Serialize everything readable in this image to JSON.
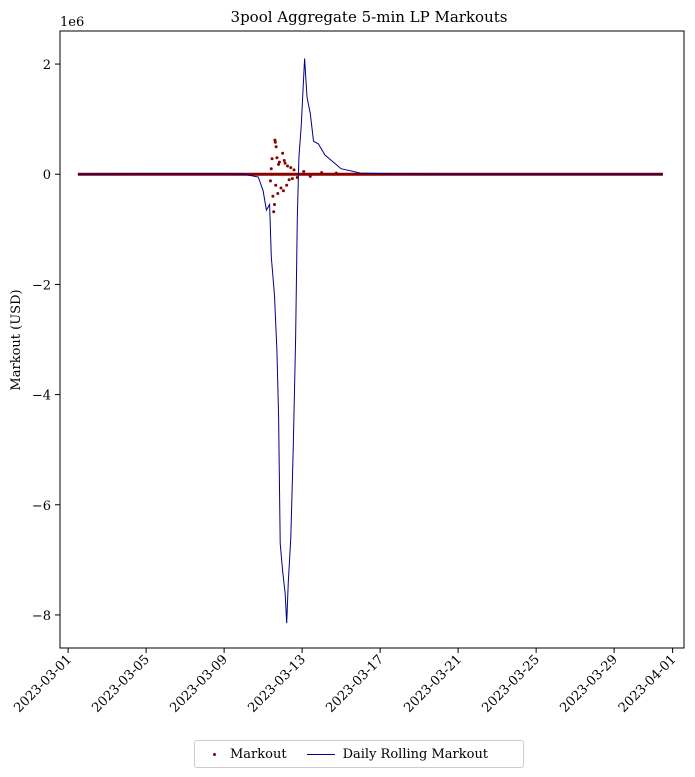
{
  "chart_data": {
    "type": "scatter+line",
    "title": "3pool Aggregate 5-min LP Markouts",
    "ylabel": "Markout (USD)",
    "xlabel": "",
    "y_multiplier_label": "1e6",
    "ylim": [
      -8.6,
      2.6
    ],
    "xlim": [
      "2023-02-28T14:00",
      "2023-04-01T14:00"
    ],
    "y_ticks": [
      2,
      0,
      -2,
      -4,
      -6,
      -8
    ],
    "y_tick_labels": [
      "2",
      "0",
      "−2",
      "−4",
      "−6",
      "−8"
    ],
    "x_ticks": [
      "2023-03-01",
      "2023-03-05",
      "2023-03-09",
      "2023-03-13",
      "2023-03-17",
      "2023-03-21",
      "2023-03-25",
      "2023-03-29",
      "2023-04-01"
    ],
    "grid": false,
    "legend_placement": "bottom-center",
    "colors": {
      "markout": "#8b0000",
      "rolling": "#00008b"
    },
    "series": [
      {
        "name": "Markout",
        "kind": "scatter",
        "points": [
          [
            "2023-03-11T14:30",
            0.62
          ],
          [
            "2023-03-11T15:00",
            0.58
          ],
          [
            "2023-03-11T12:00",
            -0.4
          ],
          [
            "2023-03-11T13:00",
            -0.68
          ],
          [
            "2023-03-11T14:00",
            -0.55
          ],
          [
            "2023-03-11T16:00",
            0.5
          ],
          [
            "2023-03-11T17:00",
            0.3
          ],
          [
            "2023-03-11T18:00",
            -0.35
          ],
          [
            "2023-03-11T20:00",
            0.22
          ],
          [
            "2023-03-11T22:00",
            -0.25
          ],
          [
            "2023-03-12T00:00",
            0.38
          ],
          [
            "2023-03-12T01:00",
            -0.3
          ],
          [
            "2023-03-12T03:00",
            0.2
          ],
          [
            "2023-03-12T05:00",
            -0.2
          ],
          [
            "2023-03-12T06:00",
            0.15
          ],
          [
            "2023-03-12T08:00",
            -0.1
          ],
          [
            "2023-03-12T10:00",
            0.12
          ],
          [
            "2023-03-12T12:00",
            -0.08
          ],
          [
            "2023-03-11T10:00",
            0.1
          ],
          [
            "2023-03-11T09:00",
            -0.12
          ],
          [
            "2023-03-11T11:00",
            0.28
          ],
          [
            "2023-03-11T15:30",
            -0.2
          ],
          [
            "2023-03-11T19:00",
            0.18
          ],
          [
            "2023-03-12T02:00",
            0.25
          ],
          [
            "2023-03-12T14:00",
            0.08
          ],
          [
            "2023-03-12T18:00",
            -0.06
          ],
          [
            "2023-03-13T02:00",
            0.05
          ],
          [
            "2023-03-13T10:00",
            -0.04
          ],
          [
            "2023-03-14T00:00",
            0.03
          ],
          [
            "2023-03-14T18:00",
            0.02
          ]
        ]
      },
      {
        "name": "Daily Rolling Markout",
        "kind": "line",
        "points": [
          [
            "2023-03-01T12:00",
            0.0
          ],
          [
            "2023-03-05T00:00",
            0.01
          ],
          [
            "2023-03-09T00:00",
            0.01
          ],
          [
            "2023-03-10T00:00",
            0.0
          ],
          [
            "2023-03-10T18:00",
            -0.05
          ],
          [
            "2023-03-11T00:00",
            -0.3
          ],
          [
            "2023-03-11T04:00",
            -0.65
          ],
          [
            "2023-03-11T08:00",
            -0.55
          ],
          [
            "2023-03-11T10:00",
            -1.5
          ],
          [
            "2023-03-11T14:00",
            -2.2
          ],
          [
            "2023-03-11T17:00",
            -3.2
          ],
          [
            "2023-03-11T19:00",
            -4.4
          ],
          [
            "2023-03-11T21:00",
            -6.7
          ],
          [
            "2023-03-12T00:00",
            -7.2
          ],
          [
            "2023-03-12T03:00",
            -7.6
          ],
          [
            "2023-03-12T05:00",
            -8.15
          ],
          [
            "2023-03-12T07:00",
            -7.4
          ],
          [
            "2023-03-12T10:00",
            -6.6
          ],
          [
            "2023-03-12T13:00",
            -5.0
          ],
          [
            "2023-03-12T16:00",
            -3.0
          ],
          [
            "2023-03-12T18:00",
            -0.8
          ],
          [
            "2023-03-12T20:00",
            0.3
          ],
          [
            "2023-03-12T23:00",
            0.9
          ],
          [
            "2023-03-13T03:00",
            2.1
          ],
          [
            "2023-03-13T06:00",
            1.4
          ],
          [
            "2023-03-13T10:00",
            1.1
          ],
          [
            "2023-03-13T14:00",
            0.6
          ],
          [
            "2023-03-13T20:00",
            0.55
          ],
          [
            "2023-03-14T04:00",
            0.35
          ],
          [
            "2023-03-14T12:00",
            0.25
          ],
          [
            "2023-03-15T00:00",
            0.1
          ],
          [
            "2023-03-16T00:00",
            0.02
          ],
          [
            "2023-03-17T12:00",
            0.01
          ],
          [
            "2023-03-21T00:00",
            0.0
          ],
          [
            "2023-03-25T00:00",
            0.0
          ],
          [
            "2023-03-29T00:00",
            0.0
          ],
          [
            "2023-03-31T12:00",
            0.0
          ]
        ]
      }
    ]
  },
  "legend": {
    "items": [
      "Markout",
      "Daily Rolling Markout"
    ]
  }
}
